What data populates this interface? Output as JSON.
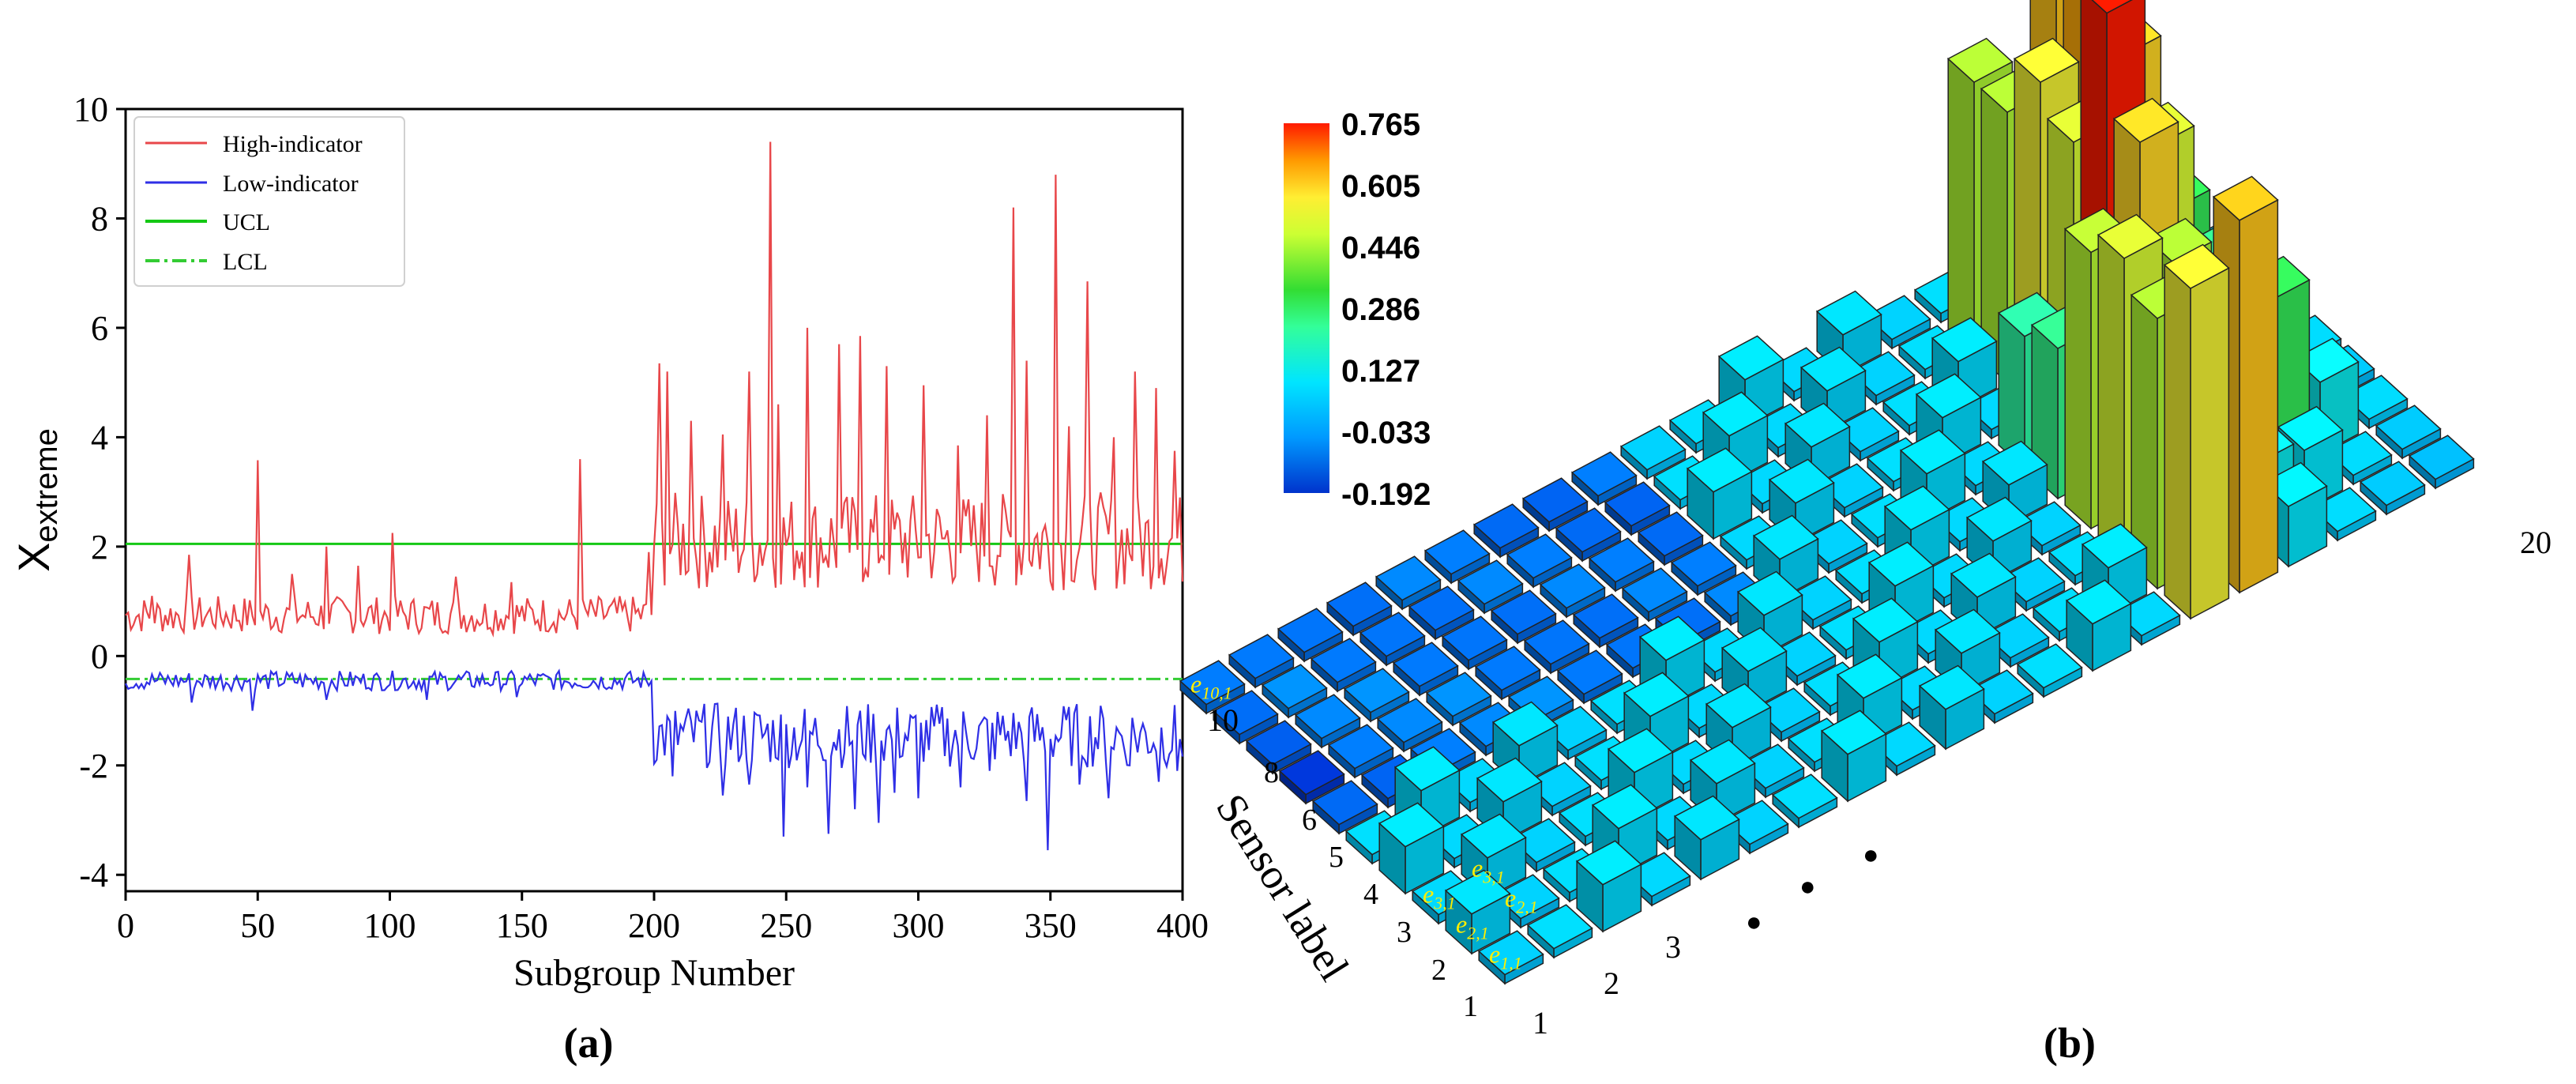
{
  "chart_data": [
    {
      "type": "line",
      "panel_label": "(a)",
      "xlabel": "Subgroup Number",
      "ylabel_main": "X",
      "ylabel_sub": "extreme",
      "xlim": [
        0,
        400
      ],
      "ylim": [
        -4.3,
        10
      ],
      "xticks": [
        "0",
        "50",
        "100",
        "150",
        "200",
        "250",
        "300",
        "350",
        "400"
      ],
      "yticks": [
        "-4",
        "-2",
        "0",
        "2",
        "4",
        "6",
        "8",
        "10"
      ],
      "legend": [
        "High-indicator",
        "Low-indicator",
        "UCL",
        "LCL"
      ],
      "colors": {
        "high": "#e8474a",
        "low": "#2f2fe6",
        "ucl": "#14c814",
        "lcl": "#33cc33"
      },
      "ucl": 2.05,
      "lcl": -0.42,
      "series": [
        {
          "name": "High-indicator",
          "shift_at": 200,
          "phase1_mean": 0.75,
          "phase1_spread": 0.35,
          "phase2_mean": 2.1,
          "phase2_spread": 0.9,
          "spikes": [
            [
              10,
              1.1
            ],
            [
              24,
              1.85
            ],
            [
              50,
              3.58
            ],
            [
              63,
              1.5
            ],
            [
              76,
              2.0
            ],
            [
              88,
              1.65
            ],
            [
              101,
              2.25
            ],
            [
              125,
              1.45
            ],
            [
              146,
              1.35
            ],
            [
              172,
              3.6
            ],
            [
              198,
              1.9
            ],
            [
              202,
              5.35
            ],
            [
              205,
              5.2
            ],
            [
              214,
              4.3
            ],
            [
              226,
              4.05
            ],
            [
              236,
              5.2
            ],
            [
              244,
              9.4
            ],
            [
              247,
              4.6
            ],
            [
              258,
              6.0
            ],
            [
              270,
              5.7
            ],
            [
              278,
              5.85
            ],
            [
              288,
              5.3
            ],
            [
              302,
              4.95
            ],
            [
              315,
              3.85
            ],
            [
              326,
              4.4
            ],
            [
              336,
              8.2
            ],
            [
              341,
              5.4
            ],
            [
              352,
              8.8
            ],
            [
              357,
              4.2
            ],
            [
              364,
              6.85
            ],
            [
              374,
              4.0
            ],
            [
              382,
              5.2
            ],
            [
              390,
              4.9
            ],
            [
              397,
              3.75
            ]
          ]
        },
        {
          "name": "Low-indicator",
          "shift_at": 200,
          "phase1_mean": -0.45,
          "phase1_spread": 0.18,
          "phase2_mean": -1.45,
          "phase2_spread": 0.6,
          "spikes": [
            [
              25,
              -0.85
            ],
            [
              48,
              -1.0
            ],
            [
              76,
              -0.8
            ],
            [
              114,
              -0.8
            ],
            [
              148,
              -0.75
            ],
            [
              207,
              -2.2
            ],
            [
              226,
              -2.55
            ],
            [
              236,
              -2.35
            ],
            [
              249,
              -3.3
            ],
            [
              258,
              -2.4
            ],
            [
              266,
              -3.25
            ],
            [
              276,
              -2.8
            ],
            [
              285,
              -3.05
            ],
            [
              291,
              -2.5
            ],
            [
              300,
              -2.6
            ],
            [
              316,
              -2.4
            ],
            [
              327,
              -2.1
            ],
            [
              341,
              -2.65
            ],
            [
              349,
              -3.55
            ],
            [
              361,
              -2.35
            ],
            [
              372,
              -2.6
            ],
            [
              380,
              -2.0
            ],
            [
              391,
              -2.3
            ],
            [
              398,
              -2.1
            ]
          ]
        }
      ]
    },
    {
      "type": "3d-bar",
      "panel_label": "(b)",
      "ylabel": "Sensor label",
      "colorbar": {
        "min": -0.192,
        "max": 0.765,
        "tick_labels": [
          "0.765",
          "0.605",
          "0.446",
          "0.286",
          "0.127",
          "-0.033",
          "-0.192"
        ]
      },
      "x_tick_labels": [
        "1",
        "2",
        "3",
        "20"
      ],
      "y_tick_labels": [
        "1",
        "2",
        "3",
        "4",
        "5",
        "6",
        "8",
        "10"
      ],
      "cell_labels": [
        {
          "base": "e",
          "sub": "1,1"
        },
        {
          "base": "e",
          "sub": "2,1"
        },
        {
          "base": "e",
          "sub": "3,1"
        },
        {
          "base": "e",
          "sub": "2,1"
        },
        {
          "base": "e",
          "sub": "3,1"
        },
        {
          "base": "e",
          "sub": "10,1"
        }
      ],
      "ellipsis": "●",
      "grid_size": [
        20,
        10
      ],
      "tall_bars": [
        [
          14,
          0,
          0.55
        ],
        [
          14,
          1,
          0.45
        ],
        [
          14,
          2,
          0.5
        ],
        [
          14,
          3,
          0.46
        ],
        [
          14,
          4,
          0.25
        ],
        [
          14,
          5,
          0.22
        ],
        [
          15,
          0,
          0.62
        ],
        [
          15,
          1,
          0.2
        ],
        [
          15,
          2,
          0.45
        ],
        [
          15,
          3,
          0.6
        ],
        [
          15,
          4,
          0.765
        ],
        [
          15,
          5,
          0.5
        ],
        [
          15,
          6,
          0.55
        ],
        [
          15,
          7,
          0.45
        ],
        [
          15,
          8,
          0.45
        ],
        [
          16,
          0,
          0.1
        ],
        [
          16,
          1,
          0.12
        ],
        [
          16,
          2,
          0.3
        ],
        [
          16,
          3,
          0.28
        ],
        [
          16,
          4,
          0.5
        ],
        [
          16,
          5,
          0.6
        ],
        [
          16,
          6,
          0.65
        ],
        [
          16,
          7,
          0.62
        ],
        [
          17,
          0,
          0.05
        ],
        [
          17,
          1,
          0.1
        ],
        [
          17,
          2,
          0.3
        ],
        [
          17,
          3,
          0.2
        ],
        [
          17,
          4,
          0.25
        ],
        [
          17,
          5,
          0.3
        ],
        [
          17,
          6,
          0.35
        ],
        [
          17,
          7,
          0.25
        ],
        [
          18,
          0,
          0.02
        ],
        [
          18,
          1,
          0.05
        ],
        [
          18,
          2,
          0.12
        ],
        [
          18,
          3,
          0.06
        ],
        [
          18,
          4,
          0.1
        ],
        [
          18,
          5,
          0.15
        ],
        [
          18,
          6,
          0.1
        ],
        [
          18,
          7,
          0.05
        ],
        [
          19,
          0,
          0.0
        ],
        [
          19,
          1,
          0.02
        ],
        [
          19,
          2,
          0.05
        ],
        [
          19,
          3,
          0.02
        ],
        [
          19,
          4,
          0.05
        ],
        [
          19,
          5,
          0.06
        ],
        [
          19,
          6,
          0.02
        ],
        [
          19,
          7,
          0.04
        ]
      ],
      "negative_row_values": [
        -0.15,
        -0.16,
        -0.17,
        -0.12,
        -0.14,
        -0.18,
        -0.19,
        -0.14,
        -0.12,
        -0.1
      ]
    }
  ]
}
